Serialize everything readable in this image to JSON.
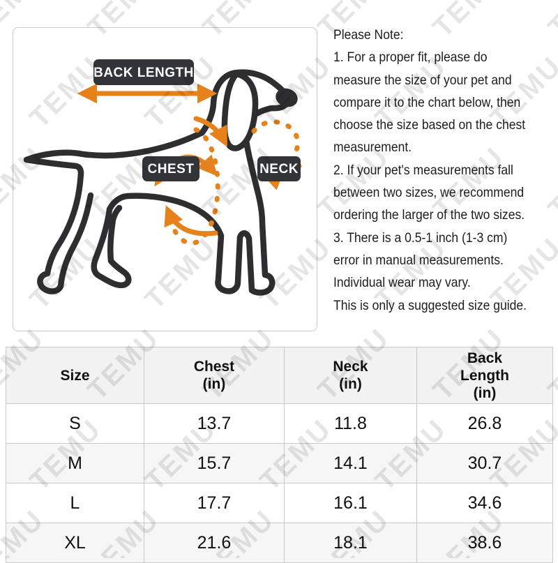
{
  "watermark": {
    "text": "TEMU"
  },
  "diagram": {
    "back_length_label": "BACK LENGTH",
    "chest_label": "CHEST",
    "neck_label": "NECK"
  },
  "notes": {
    "lines": [
      "Please Note:",
      "1. For a proper fit, please do",
      "measure the size of your pet and",
      "compare it to the chart below, then",
      "choose the size based on the chest",
      "measurement.",
      "2. If your pet's measurements fall",
      "between two sizes, we recommend",
      "ordering the larger of the two sizes.",
      "3. There is a 0.5-1 inch (1-3 cm)",
      "error in manual measurements.",
      "Individual wear may vary.",
      "This is only a suggested size guide."
    ]
  },
  "size_table": {
    "headers": [
      "Size",
      "Chest\n(in)",
      "Neck\n(in)",
      "Back\nLength\n(in)"
    ],
    "rows": [
      {
        "size": "S",
        "chest": "13.7",
        "neck": "11.8",
        "back_length": "26.8"
      },
      {
        "size": "M",
        "chest": "15.7",
        "neck": "14.1",
        "back_length": "30.7"
      },
      {
        "size": "L",
        "chest": "17.7",
        "neck": "16.1",
        "back_length": "34.6"
      },
      {
        "size": "XL",
        "chest": "21.6",
        "neck": "18.1",
        "back_length": "38.6"
      }
    ]
  },
  "colors": {
    "accent_orange": "#E5821C",
    "label_bg": "#333438",
    "dog_outline": "#2e2e30",
    "header_bg": "#f2f2f2",
    "row_alt_bg": "#f6f6f6"
  }
}
